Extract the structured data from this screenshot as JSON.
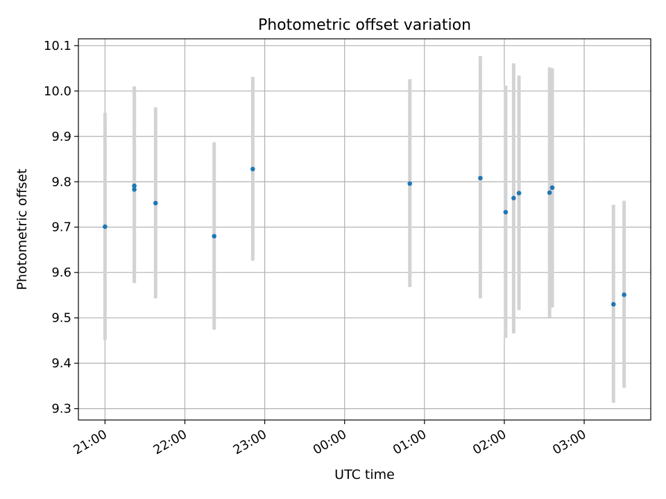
{
  "chart_data": {
    "type": "scatter",
    "title": "Photometric offset variation",
    "xlabel": "UTC time",
    "ylabel": "Photometric offset",
    "x_unit": "UTC clock time (day boundary at 00:00)",
    "xlim": [
      "20:40",
      "03:50"
    ],
    "ylim": [
      9.275,
      10.115
    ],
    "x_ticks": [
      "21:00",
      "22:00",
      "23:00",
      "00:00",
      "01:00",
      "02:00",
      "03:00"
    ],
    "y_ticks": [
      "9.3",
      "9.4",
      "9.5",
      "9.6",
      "9.7",
      "9.8",
      "9.9",
      "10.0",
      "10.1"
    ],
    "grid": true,
    "colors": {
      "marker": "#1f77b4",
      "errorbar": "#d3d3d3",
      "grid": "#b0b0b0"
    },
    "series": [
      {
        "points": [
          {
            "x": "21:00",
            "y": 9.701,
            "err_low": 9.452,
            "err_high": 9.952
          },
          {
            "x": "21:22",
            "y": 9.783,
            "err_low": 9.577,
            "err_high": 10.01
          },
          {
            "x": "21:22",
            "y": 9.791,
            "err_low": 9.577,
            "err_high": 10.01
          },
          {
            "x": "21:38",
            "y": 9.753,
            "err_low": 9.543,
            "err_high": 9.964
          },
          {
            "x": "22:22",
            "y": 9.68,
            "err_low": 9.474,
            "err_high": 9.887
          },
          {
            "x": "22:51",
            "y": 9.828,
            "err_low": 9.626,
            "err_high": 10.031
          },
          {
            "x": "00:49",
            "y": 9.796,
            "err_low": 9.568,
            "err_high": 10.026
          },
          {
            "x": "01:42",
            "y": 9.808,
            "err_low": 9.543,
            "err_high": 10.077
          },
          {
            "x": "02:01",
            "y": 9.733,
            "err_low": 9.456,
            "err_high": 10.012
          },
          {
            "x": "02:07",
            "y": 9.764,
            "err_low": 9.466,
            "err_high": 10.061
          },
          {
            "x": "02:11",
            "y": 9.775,
            "err_low": 9.517,
            "err_high": 10.034
          },
          {
            "x": "02:34",
            "y": 9.776,
            "err_low": 9.5,
            "err_high": 10.052
          },
          {
            "x": "02:36",
            "y": 9.787,
            "err_low": 9.523,
            "err_high": 10.05
          },
          {
            "x": "03:22",
            "y": 9.53,
            "err_low": 9.313,
            "err_high": 9.749
          },
          {
            "x": "03:30",
            "y": 9.551,
            "err_low": 9.346,
            "err_high": 9.758
          }
        ]
      }
    ]
  }
}
